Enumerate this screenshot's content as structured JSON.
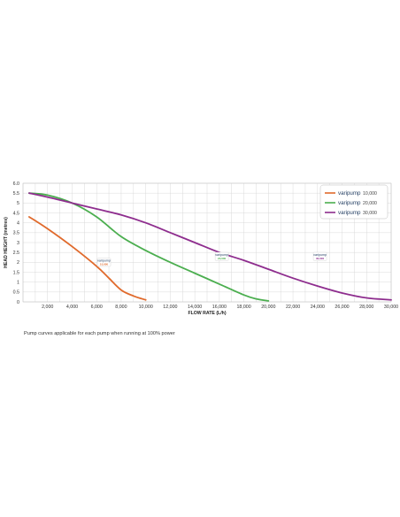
{
  "chart_data": {
    "type": "line",
    "xlabel": "FLOW RATE (L/h)",
    "ylabel": "HEAD HEIGHT (metres)",
    "xlim": [
      0,
      30000
    ],
    "ylim": [
      0,
      6.0
    ],
    "x_ticks": [
      "2,000",
      "4,000",
      "6,000",
      "8,000",
      "10,000",
      "12,000",
      "14,000",
      "16,000",
      "18,000",
      "20,000",
      "22,000",
      "24,000",
      "26,000",
      "28,000",
      "30,000"
    ],
    "x_tick_values": [
      2000,
      4000,
      6000,
      8000,
      10000,
      12000,
      14000,
      16000,
      18000,
      20000,
      22000,
      24000,
      26000,
      28000,
      30000
    ],
    "y_ticks": [
      "0",
      "0.5",
      "1",
      "1.5",
      "2",
      "2.5",
      "3",
      "3.5",
      "4",
      "4.5",
      "5",
      "5.5",
      "6.0"
    ],
    "y_tick_values": [
      0,
      0.5,
      1,
      1.5,
      2,
      2.5,
      3,
      3.5,
      4,
      4.5,
      5,
      5.5,
      6.0
    ],
    "grid": true,
    "legend_position": "top-right",
    "series": [
      {
        "name": "10,000",
        "brand": "varipump",
        "color": "#e06a2c",
        "x": [
          500,
          2000,
          4000,
          6000,
          7000,
          8000,
          9000,
          10000
        ],
        "y": [
          4.3,
          3.7,
          2.8,
          1.8,
          1.2,
          0.6,
          0.3,
          0.1
        ]
      },
      {
        "name": "20,000",
        "brand": "varipump",
        "color": "#4bae4f",
        "x": [
          500,
          2000,
          4000,
          6000,
          8000,
          10000,
          12000,
          14000,
          16000,
          18000,
          19000,
          20000
        ],
        "y": [
          5.5,
          5.4,
          5.0,
          4.3,
          3.3,
          2.6,
          2.0,
          1.45,
          0.9,
          0.35,
          0.15,
          0.05
        ]
      },
      {
        "name": "30,000",
        "brand": "varipump",
        "color": "#8e2d8e",
        "x": [
          500,
          2000,
          4000,
          6000,
          8000,
          10000,
          12000,
          14000,
          16000,
          18000,
          20000,
          22000,
          24000,
          26000,
          28000,
          30000
        ],
        "y": [
          5.5,
          5.3,
          5.0,
          4.7,
          4.4,
          4.0,
          3.5,
          3.0,
          2.5,
          2.1,
          1.65,
          1.2,
          0.8,
          0.45,
          0.2,
          0.1
        ]
      }
    ]
  },
  "caption": "Pump curves applicable for each pump when running at 100% power"
}
